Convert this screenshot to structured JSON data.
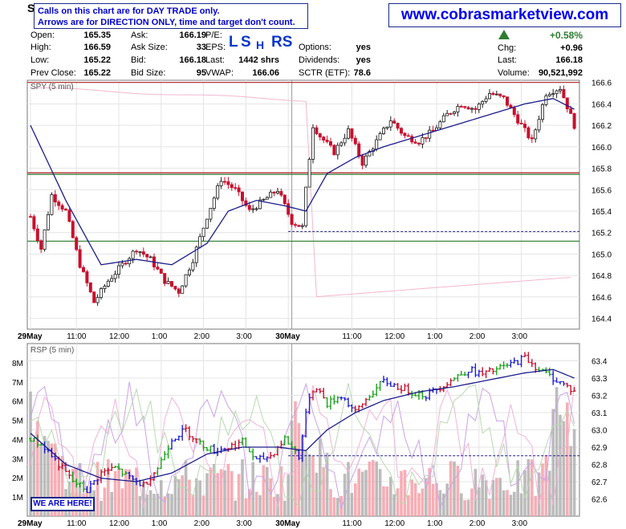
{
  "header": {
    "ticker_initial": "S",
    "notice_line1": "Calls on this chart are for DAY TRADE only.",
    "notice_line2": "Arrows are for DIRECTION ONLY, time and target don't count.",
    "site": "www.cobrasmarketview.com"
  },
  "quote": {
    "open_label": "Open:",
    "open": "165.35",
    "high_label": "High:",
    "high": "166.59",
    "low_label": "Low:",
    "low": "165.22",
    "prevclose_label": "Prev Close:",
    "prevclose": "165.22",
    "ask_label": "Ask:",
    "ask": "166.19",
    "asksize_label": "Ask Size:",
    "asksize": "33",
    "bid_label": "Bid:",
    "bid": "166.18",
    "bidsize_label": "Bid Size:",
    "bidsize": "95",
    "pe_label": "P/E:",
    "eps_label": "EPS:",
    "last_label": "Last:",
    "lastshrs": "1442 shrs",
    "vwap_label": "VWAP:",
    "vwap": "166.06",
    "options_label": "Options:",
    "options": "yes",
    "dividends_label": "Dividends:",
    "dividends": "yes",
    "sctr_label": "SCTR (ETF):",
    "sctr": "78.6",
    "pct_change": "+0.58%",
    "chg_label": "Chg:",
    "chg": "+0.96",
    "last2_label": "Last:",
    "last2": "166.18",
    "volume_label": "Volume:",
    "volume": "90,521,992",
    "signal_l": "L",
    "signal_s": "S",
    "signal_h": "H",
    "signal_rs": "RS"
  },
  "annotation": "WE ARE HERE!",
  "colors": {
    "up": "#1a1a1a",
    "down": "#c8102e",
    "ma": "#1c1c8c",
    "resistance": "#b22222",
    "support": "#2e7d32",
    "level": "#1c1c8c",
    "rsp_up": "#1aa31a",
    "rsp_down": "#c8102e",
    "rsp_flat": "#2020d0",
    "volume": "#b0b0b0",
    "volume_up": "#f4a0a8"
  },
  "chart_data": [
    {
      "type": "candlestick",
      "title": "SPY (5 min)",
      "sessions": [
        "29May",
        "30May"
      ],
      "session_ticks": [
        "29May",
        "11:00",
        "12:00",
        "1:00",
        "2:00",
        "3:00",
        "30May",
        "11:00",
        "12:00",
        "1:00",
        "2:00",
        "3:00"
      ],
      "ylim": [
        164.3,
        166.62
      ],
      "yticks": [
        164.4,
        164.6,
        164.8,
        165.0,
        165.2,
        165.4,
        165.6,
        165.8,
        166.0,
        166.2,
        166.4,
        166.6
      ],
      "levels": {
        "resistance": [
          166.6,
          165.75
        ],
        "support": [
          165.75,
          165.12
        ],
        "dashed": 165.21
      },
      "close_anchors": {
        "x": [
          0,
          3,
          6,
          10,
          14,
          18,
          22,
          26,
          30,
          34,
          38,
          42,
          46,
          50,
          54,
          58,
          62,
          66,
          70,
          74,
          77,
          78,
          80,
          82,
          86,
          90,
          94,
          98,
          102,
          106,
          110,
          114,
          118,
          122,
          126,
          130,
          134,
          138,
          142,
          146,
          150,
          154
        ],
        "y": [
          165.35,
          165.05,
          165.55,
          165.4,
          164.9,
          164.55,
          164.75,
          164.9,
          165.05,
          164.95,
          164.75,
          164.65,
          164.95,
          165.35,
          165.7,
          165.6,
          165.4,
          165.5,
          165.6,
          165.3,
          165.25,
          165.6,
          166.2,
          166.1,
          165.95,
          166.15,
          165.85,
          166.05,
          166.25,
          166.1,
          166.05,
          166.15,
          166.3,
          166.4,
          166.35,
          166.5,
          166.45,
          166.25,
          166.05,
          166.5,
          166.55,
          166.2
        ]
      },
      "sma_anchors": {
        "x": [
          0,
          10,
          20,
          30,
          40,
          50,
          56,
          64,
          72,
          78,
          84,
          92,
          100,
          110,
          120,
          130,
          140,
          148,
          154
        ],
        "y": [
          166.2,
          165.5,
          164.9,
          164.95,
          164.9,
          165.1,
          165.4,
          165.5,
          165.45,
          165.4,
          165.75,
          165.9,
          166.0,
          166.1,
          166.2,
          166.3,
          166.4,
          166.45,
          166.35
        ]
      }
    },
    {
      "type": "bar",
      "title": "RSP (5 min)",
      "ylim": [
        62.5,
        63.5
      ],
      "yticks": [
        62.6,
        62.7,
        62.8,
        62.9,
        63.0,
        63.1,
        63.2,
        63.3,
        63.4
      ],
      "volume_ticks": [
        "1M",
        "2M",
        "3M",
        "4M",
        "5M",
        "6M",
        "7M",
        "8M"
      ],
      "volume_max": 9,
      "dashed": 62.85,
      "close_anchors": {
        "x": [
          0,
          4,
          8,
          12,
          16,
          20,
          24,
          28,
          32,
          36,
          40,
          44,
          48,
          52,
          56,
          60,
          64,
          68,
          72,
          76,
          79,
          81,
          84,
          88,
          92,
          96,
          100,
          104,
          108,
          112,
          116,
          120,
          124,
          128,
          132,
          136,
          140,
          144,
          148,
          152,
          154
        ],
        "y": [
          62.95,
          62.9,
          62.8,
          62.7,
          62.65,
          62.75,
          62.78,
          62.72,
          62.68,
          62.78,
          62.95,
          63.0,
          62.92,
          62.88,
          62.9,
          62.93,
          62.82,
          62.85,
          62.95,
          62.85,
          63.2,
          63.25,
          63.15,
          63.2,
          63.1,
          63.2,
          63.28,
          63.25,
          63.22,
          63.2,
          63.25,
          63.3,
          63.35,
          63.32,
          63.35,
          63.38,
          63.42,
          63.35,
          63.3,
          63.25,
          63.22
        ]
      },
      "sma_anchors": {
        "x": [
          0,
          10,
          20,
          30,
          40,
          50,
          60,
          70,
          78,
          84,
          92,
          100,
          110,
          120,
          130,
          140,
          148,
          154
        ],
        "y": [
          62.98,
          62.8,
          62.72,
          62.7,
          62.75,
          62.86,
          62.9,
          62.9,
          62.88,
          63.0,
          63.1,
          63.17,
          63.22,
          63.25,
          63.29,
          63.33,
          63.35,
          63.3
        ]
      }
    }
  ]
}
